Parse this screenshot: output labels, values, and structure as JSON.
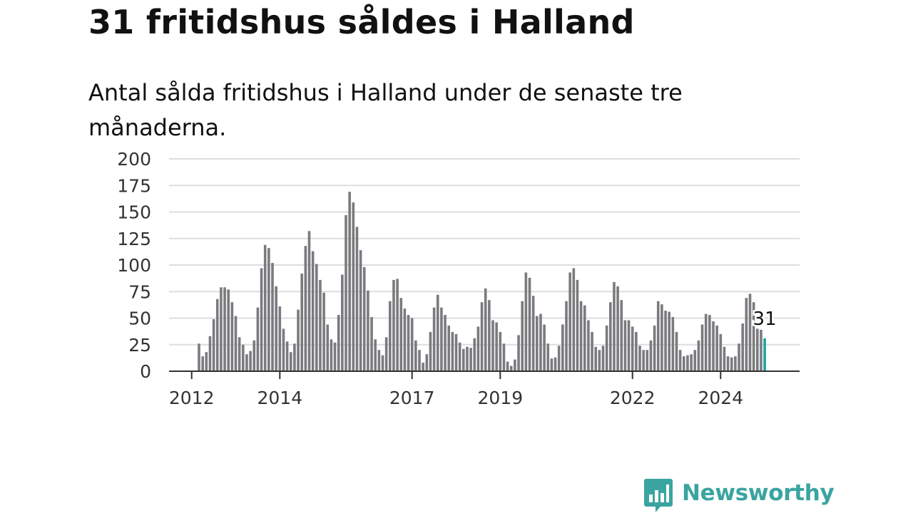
{
  "title": "31 fritidshus såldes i Halland",
  "subtitle": "Antal sålda fritidshus i Halland under de senaste tre månaderna.",
  "brand": {
    "name": "Newsworthy",
    "icon": "newsworthy-logo-icon",
    "color": "#3aa4a0"
  },
  "colors": {
    "bar": "#7a7a7f",
    "highlight": "#18a4a4",
    "grid": "#dddddd",
    "axis": "#333333",
    "text": "#333333"
  },
  "chart_data": {
    "type": "bar",
    "title": "31 fritidshus såldes i Halland",
    "subtitle": "Antal sålda fritidshus i Halland under de senaste tre månaderna.",
    "xlabel": "",
    "ylabel": "",
    "ylim": [
      0,
      200
    ],
    "yticks": [
      0,
      25,
      50,
      75,
      100,
      125,
      150,
      175,
      200
    ],
    "xticks": [
      "2012",
      "2014",
      "2017",
      "2019",
      "2022",
      "2024"
    ],
    "x_start": "2012-03",
    "x_frequency": "monthly",
    "grid": true,
    "legend": "none",
    "values": [
      26,
      14,
      18,
      33,
      49,
      68,
      79,
      79,
      77,
      65,
      52,
      32,
      25,
      16,
      19,
      29,
      60,
      97,
      119,
      116,
      102,
      80,
      61,
      40,
      28,
      18,
      26,
      58,
      92,
      118,
      132,
      113,
      101,
      86,
      74,
      44,
      30,
      27,
      53,
      91,
      147,
      169,
      159,
      136,
      114,
      98,
      76,
      51,
      30,
      20,
      15,
      32,
      66,
      86,
      87,
      69,
      59,
      53,
      50,
      29,
      20,
      8,
      16,
      37,
      60,
      72,
      60,
      53,
      43,
      37,
      35,
      27,
      21,
      23,
      22,
      31,
      42,
      65,
      78,
      67,
      48,
      46,
      37,
      26,
      9,
      5,
      11,
      34,
      66,
      93,
      88,
      71,
      52,
      54,
      44,
      26,
      12,
      13,
      24,
      44,
      66,
      93,
      97,
      86,
      66,
      62,
      48,
      37,
      23,
      20,
      24,
      43,
      65,
      84,
      80,
      67,
      48,
      48,
      42,
      37,
      24,
      20,
      20,
      29,
      43,
      66,
      63,
      57,
      56,
      51,
      37,
      20,
      14,
      15,
      16,
      20,
      29,
      44,
      54,
      53,
      47,
      43,
      35,
      23,
      14,
      13,
      14,
      26,
      45,
      69,
      73,
      65,
      40,
      39,
      31
    ],
    "highlight_last": true,
    "last_value_label": "31"
  }
}
